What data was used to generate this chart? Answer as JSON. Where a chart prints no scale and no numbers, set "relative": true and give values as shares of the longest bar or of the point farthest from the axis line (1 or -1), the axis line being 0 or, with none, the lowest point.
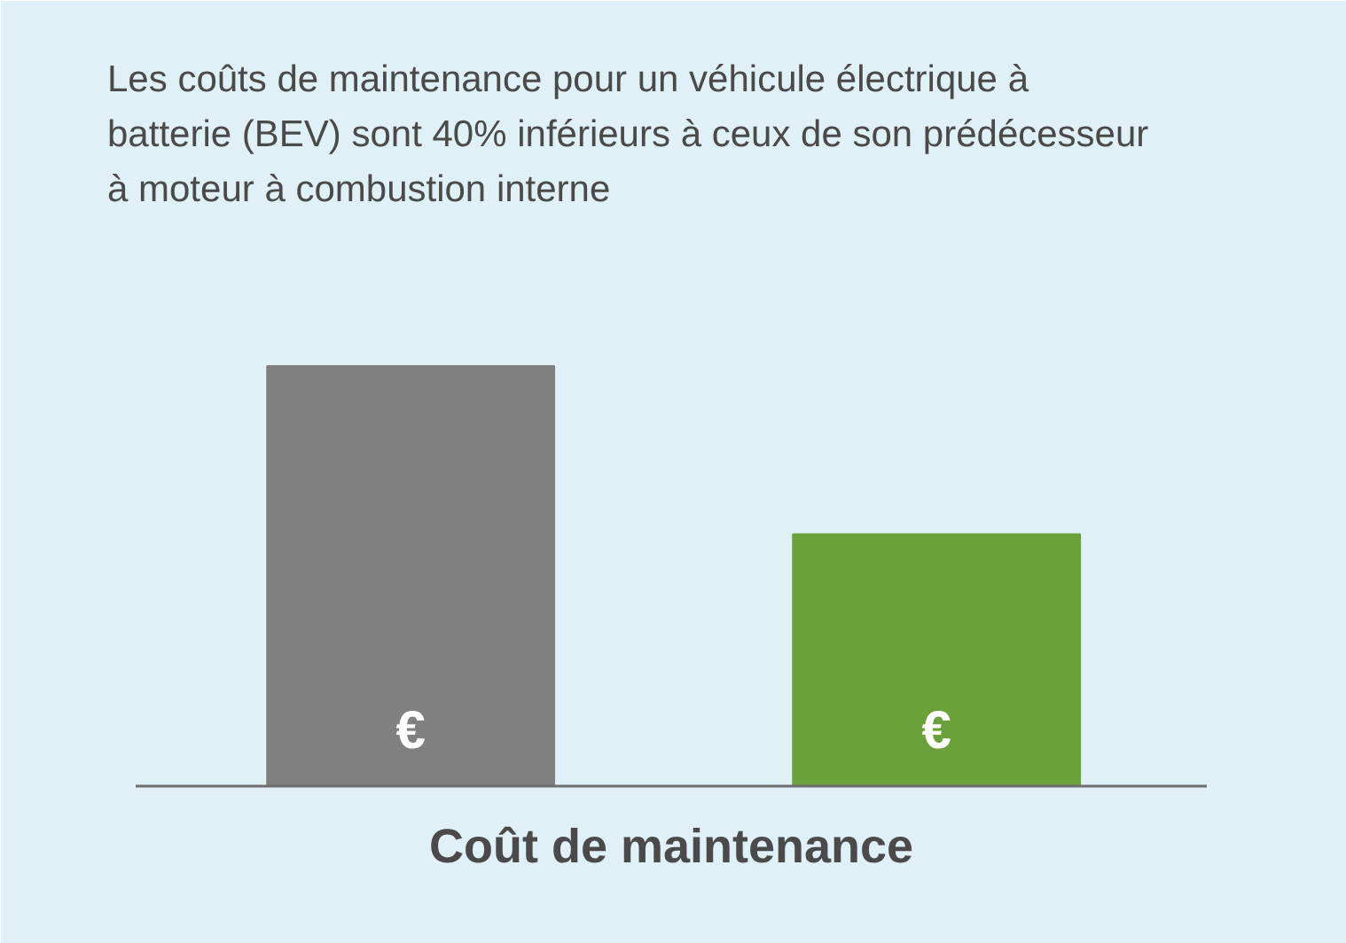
{
  "chart_data": {
    "type": "bar",
    "title": "Les coûts de maintenance pour un véhicule électrique à batterie (BEV) sont 40% inférieurs à ceux de son prédécesseur à moteur à combustion interne",
    "xlabel": "Coût de maintenance",
    "categories": [
      null,
      null
    ],
    "values": [
      1,
      0.6
    ],
    "colors": [
      "#808080",
      "#6aa13b"
    ],
    "annotations": [
      "€",
      "€"
    ],
    "relative": true
  }
}
